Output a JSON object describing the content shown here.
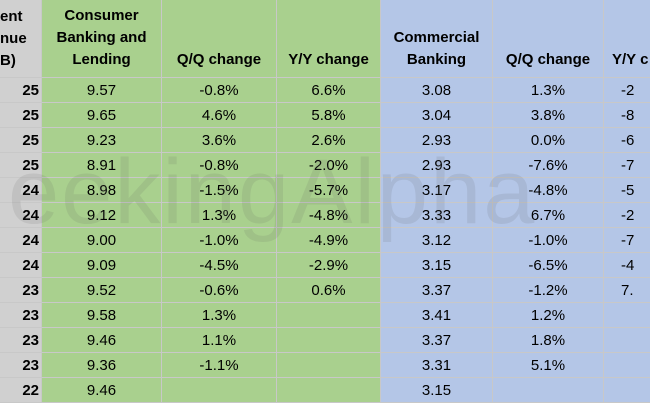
{
  "header": {
    "row_label_lines": [
      "ent",
      "nue",
      "B)"
    ],
    "columns": [
      "Consumer Banking and Lending",
      "Q/Q change",
      "Y/Y change",
      "Commercial Banking",
      "Q/Q change",
      "Y/Y c"
    ]
  },
  "table": {
    "rows": [
      [
        "25",
        "9.57",
        "-0.8%",
        "6.6%",
        "3.08",
        "1.3%",
        "-2"
      ],
      [
        "25",
        "9.65",
        "4.6%",
        "5.8%",
        "3.04",
        "3.8%",
        "-8"
      ],
      [
        "25",
        "9.23",
        "3.6%",
        "2.6%",
        "2.93",
        "0.0%",
        "-6"
      ],
      [
        "25",
        "8.91",
        "-0.8%",
        "-2.0%",
        "2.93",
        "-7.6%",
        "-7"
      ],
      [
        "24",
        "8.98",
        "-1.5%",
        "-5.7%",
        "3.17",
        "-4.8%",
        "-5"
      ],
      [
        "24",
        "9.12",
        "1.3%",
        "-4.8%",
        "3.33",
        "6.7%",
        "-2"
      ],
      [
        "24",
        "9.00",
        "-1.0%",
        "-4.9%",
        "3.12",
        "-1.0%",
        "-7"
      ],
      [
        "24",
        "9.09",
        "-4.5%",
        "-2.9%",
        "3.15",
        "-6.5%",
        "-4"
      ],
      [
        "23",
        "9.52",
        "-0.6%",
        "0.6%",
        "3.37",
        "-1.2%",
        "7."
      ],
      [
        "23",
        "9.58",
        "1.3%",
        null,
        "3.41",
        "1.2%",
        null
      ],
      [
        "23",
        "9.46",
        "1.1%",
        null,
        "3.37",
        "1.8%",
        null
      ],
      [
        "23",
        "9.36",
        "-1.1%",
        null,
        "3.31",
        "5.1%",
        null
      ],
      [
        "22",
        "9.46",
        null,
        null,
        "3.15",
        null,
        null
      ]
    ]
  },
  "watermark": "eekingAlpha"
}
